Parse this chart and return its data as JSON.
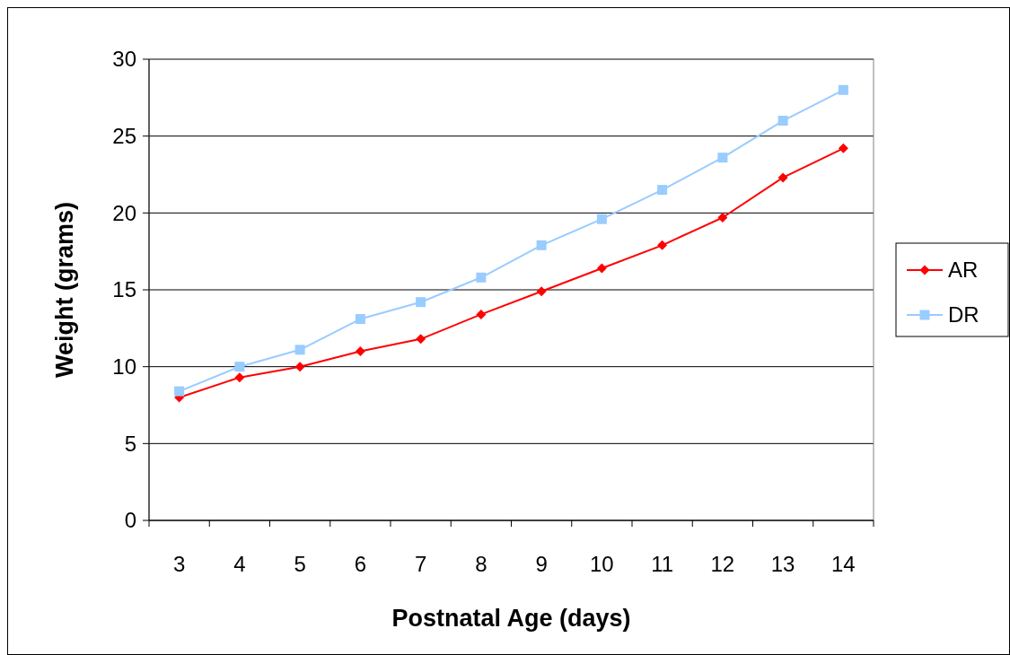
{
  "chart_data": {
    "type": "line",
    "xlabel": "Postnatal Age (days)",
    "ylabel": "Weight (grams)",
    "categories": [
      "3",
      "4",
      "5",
      "6",
      "7",
      "8",
      "9",
      "10",
      "11",
      "12",
      "13",
      "14"
    ],
    "series": [
      {
        "name": "AR",
        "color": "#ff0000",
        "marker": "diamond",
        "values": [
          8.0,
          9.3,
          10.0,
          11.0,
          11.8,
          13.4,
          14.9,
          16.4,
          17.9,
          19.7,
          22.3,
          24.2
        ]
      },
      {
        "name": "DR",
        "color": "#99ccff",
        "marker": "square",
        "values": [
          8.4,
          10.0,
          11.1,
          13.1,
          14.2,
          15.8,
          17.9,
          19.6,
          21.5,
          23.6,
          26.0,
          28.0
        ]
      }
    ],
    "ylim": [
      0,
      30
    ],
    "yticks": [
      0,
      5,
      10,
      15,
      20,
      25,
      30
    ],
    "grid": "y",
    "legend": "right",
    "line_style": "solid"
  }
}
